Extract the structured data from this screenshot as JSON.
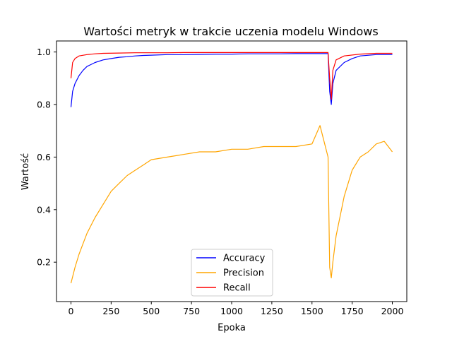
{
  "chart_data": {
    "type": "line",
    "title": "Wartości metryk w trakcie uczenia modelu Windows",
    "xlabel": "Epoka",
    "ylabel": "Wartość",
    "xlim": [
      -90,
      2090
    ],
    "ylim": [
      0.05,
      1.042
    ],
    "x_ticks": [
      0,
      250,
      500,
      750,
      1000,
      1250,
      1500,
      1750,
      2000
    ],
    "y_ticks": [
      0.2,
      0.4,
      0.6,
      0.8,
      1.0
    ],
    "x_tick_labels": [
      "0",
      "250",
      "500",
      "750",
      "1000",
      "1250",
      "1500",
      "1750",
      "2000"
    ],
    "y_tick_labels": [
      "0.2",
      "0.4",
      "0.6",
      "0.8",
      "1.0"
    ],
    "grid": false,
    "legend_position": "lower-center",
    "series": [
      {
        "name": "Accuracy",
        "color": "#0000ff",
        "x": [
          0,
          10,
          25,
          50,
          75,
          100,
          150,
          200,
          250,
          300,
          350,
          400,
          450,
          500,
          600,
          700,
          800,
          900,
          1000,
          1100,
          1200,
          1300,
          1400,
          1500,
          1600,
          1610,
          1620,
          1630,
          1650,
          1700,
          1750,
          1800,
          1900,
          2000
        ],
        "y": [
          0.79,
          0.85,
          0.88,
          0.91,
          0.93,
          0.945,
          0.96,
          0.97,
          0.975,
          0.98,
          0.982,
          0.985,
          0.987,
          0.988,
          0.99,
          0.99,
          0.991,
          0.992,
          0.992,
          0.993,
          0.993,
          0.993,
          0.994,
          0.994,
          0.994,
          0.85,
          0.8,
          0.88,
          0.93,
          0.96,
          0.975,
          0.985,
          0.99,
          0.99
        ]
      },
      {
        "name": "Precision",
        "color": "#ffa500",
        "x": [
          0,
          25,
          50,
          75,
          100,
          150,
          200,
          250,
          300,
          350,
          400,
          450,
          500,
          600,
          700,
          800,
          900,
          1000,
          1100,
          1200,
          1300,
          1400,
          1500,
          1550,
          1600,
          1610,
          1620,
          1630,
          1650,
          1700,
          1750,
          1800,
          1850,
          1900,
          1950,
          2000
        ],
        "y": [
          0.12,
          0.18,
          0.23,
          0.27,
          0.31,
          0.37,
          0.42,
          0.47,
          0.5,
          0.53,
          0.55,
          0.57,
          0.59,
          0.6,
          0.61,
          0.62,
          0.62,
          0.63,
          0.63,
          0.64,
          0.64,
          0.64,
          0.65,
          0.72,
          0.6,
          0.18,
          0.14,
          0.2,
          0.3,
          0.45,
          0.55,
          0.6,
          0.62,
          0.65,
          0.66,
          0.62
        ]
      },
      {
        "name": "Recall",
        "color": "#ff0000",
        "x": [
          0,
          10,
          25,
          50,
          100,
          150,
          200,
          300,
          400,
          500,
          600,
          700,
          800,
          900,
          1000,
          1200,
          1400,
          1500,
          1600,
          1610,
          1620,
          1630,
          1650,
          1700,
          1800,
          1900,
          2000
        ],
        "y": [
          0.9,
          0.96,
          0.975,
          0.985,
          0.99,
          0.993,
          0.995,
          0.996,
          0.997,
          0.997,
          0.997,
          0.998,
          0.998,
          0.998,
          0.998,
          0.998,
          0.998,
          0.998,
          0.998,
          0.9,
          0.82,
          0.93,
          0.97,
          0.985,
          0.992,
          0.995,
          0.995
        ]
      }
    ]
  }
}
